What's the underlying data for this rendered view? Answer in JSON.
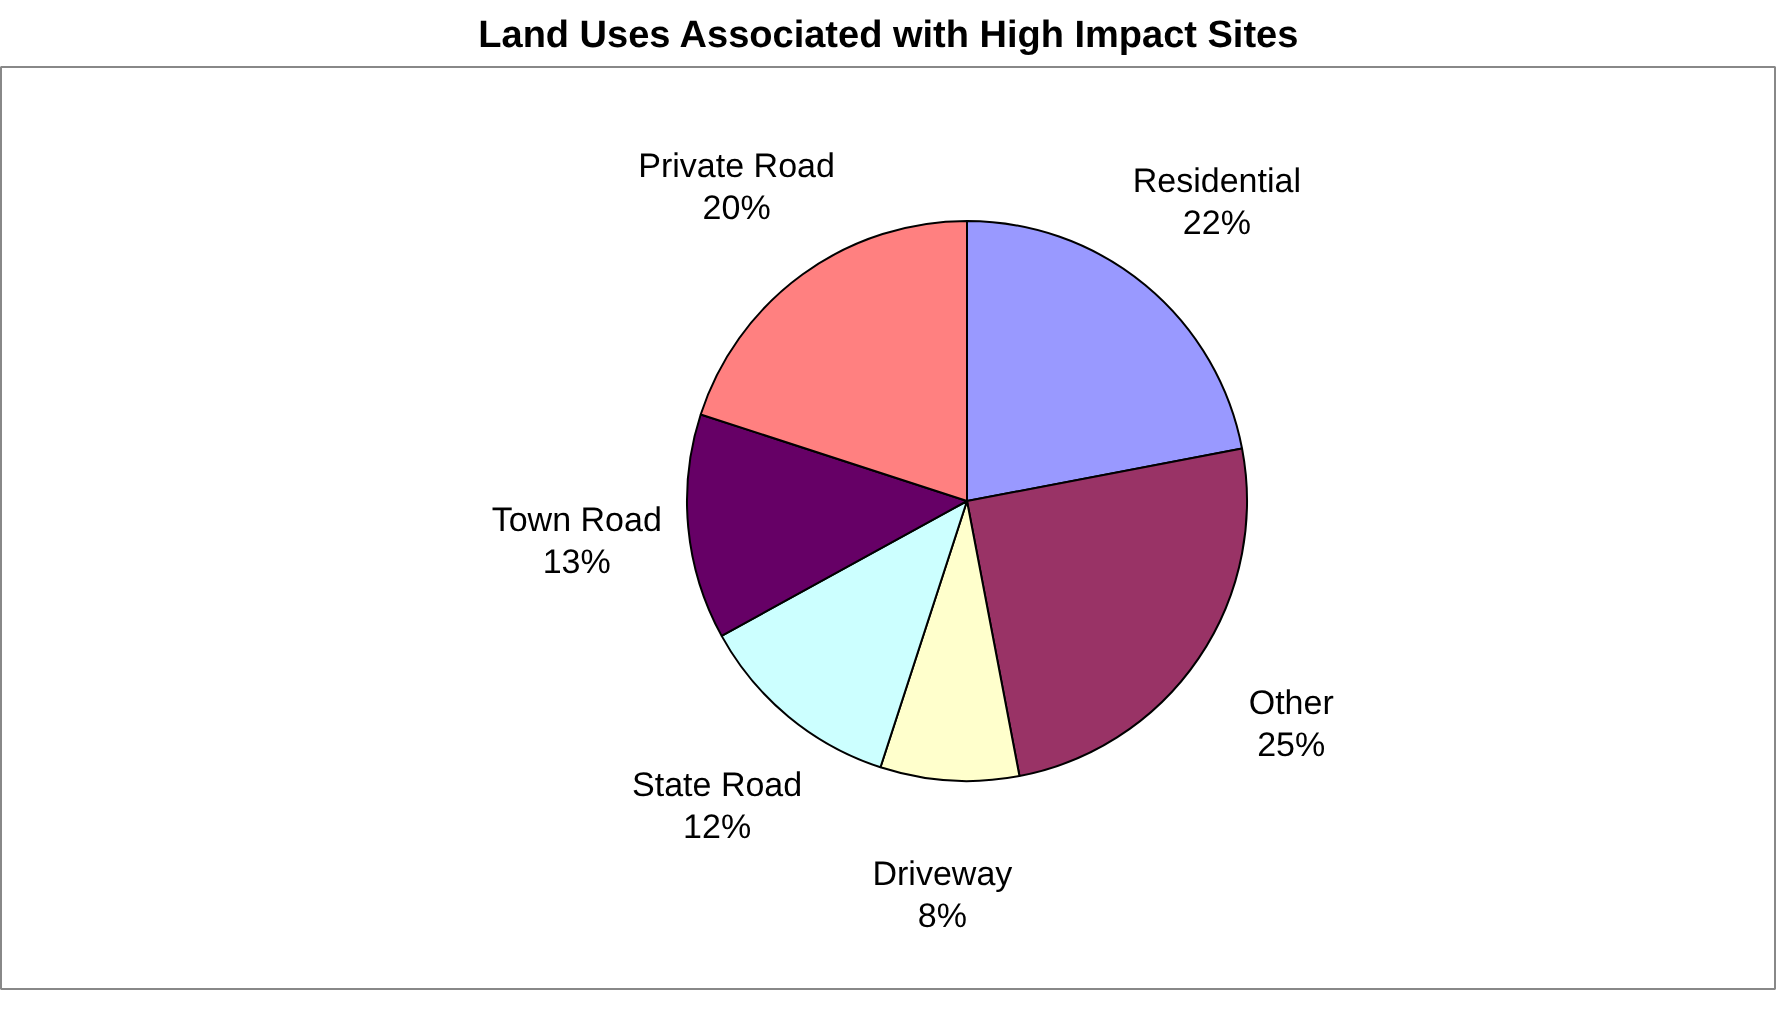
{
  "chart_data": {
    "type": "pie",
    "title": "Land Uses Associated with High Impact Sites",
    "categories": [
      "Residential",
      "Other",
      "Driveway",
      "State Road",
      "Town Road",
      "Private Road"
    ],
    "values": [
      22,
      25,
      8,
      12,
      13,
      20
    ],
    "value_labels": [
      "22%",
      "25%",
      "8%",
      "12%",
      "13%",
      "20%"
    ],
    "colors": [
      "#9999ff",
      "#993366",
      "#ffffcc",
      "#ccffff",
      "#660066",
      "#ff8080"
    ]
  }
}
